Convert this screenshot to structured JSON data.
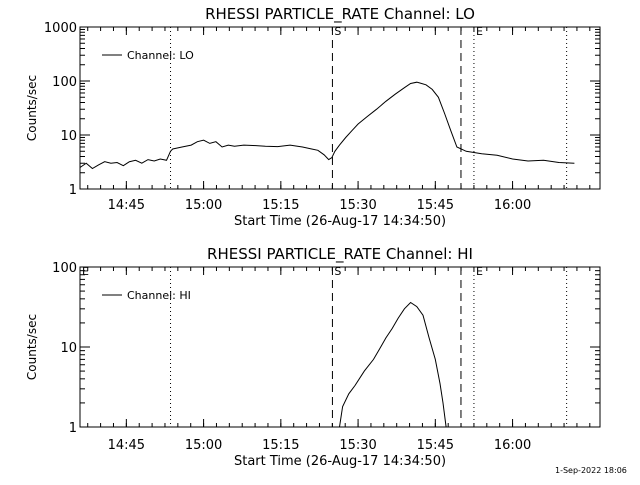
{
  "footer": {
    "timestamp": "1-Sep-2022 18:06"
  },
  "chart_data": [
    {
      "type": "line",
      "title": "RHESSI PARTICLE_RATE Channel: LO",
      "xlabel": "Start Time (26-Aug-17 14:34:50)",
      "ylabel": "Counts/sec",
      "yscale": "log",
      "xlim": [
        14.6,
        16.283
      ],
      "ylim": [
        1,
        1000
      ],
      "x_ticks": [
        14.75,
        15.0,
        15.25,
        15.5,
        15.75,
        16.0
      ],
      "x_tick_labels": [
        "14:45",
        "15:00",
        "15:15",
        "15:30",
        "15:45",
        "16:00"
      ],
      "y_ticks": [
        1,
        10,
        100,
        1000
      ],
      "y_tick_labels": [
        "1",
        "10",
        "100",
        "1000"
      ],
      "legend": {
        "entries": [
          "Channel: LO"
        ],
        "position": "top-left"
      },
      "markers": [
        {
          "x": 14.893,
          "style": "dotted",
          "label": ""
        },
        {
          "x": 15.417,
          "style": "dashed",
          "label": "S"
        },
        {
          "x": 15.833,
          "style": "dashed",
          "label": ""
        },
        {
          "x": 15.875,
          "style": "dotted",
          "label": "E"
        },
        {
          "x": 16.175,
          "style": "dotted",
          "label": ""
        }
      ],
      "series": [
        {
          "name": "Channel: LO",
          "x": [
            14.6,
            14.62,
            14.64,
            14.66,
            14.68,
            14.7,
            14.72,
            14.74,
            14.76,
            14.78,
            14.8,
            14.82,
            14.84,
            14.86,
            14.88,
            14.893,
            14.9,
            14.93,
            14.96,
            14.98,
            15.0,
            15.02,
            15.04,
            15.06,
            15.08,
            15.1,
            15.13,
            15.16,
            15.2,
            15.24,
            15.28,
            15.32,
            15.35,
            15.37,
            15.39,
            15.405,
            15.415,
            15.425,
            15.44,
            15.46,
            15.48,
            15.5,
            15.53,
            15.56,
            15.59,
            15.62,
            15.65,
            15.67,
            15.69,
            15.7,
            15.72,
            15.74,
            15.76,
            15.78,
            15.8,
            15.82,
            15.85,
            15.9,
            15.95,
            16.0,
            16.05,
            16.1,
            16.15,
            16.2
          ],
          "values": [
            2.5,
            3.0,
            2.4,
            2.8,
            3.2,
            3.0,
            3.1,
            2.7,
            3.2,
            3.4,
            3.0,
            3.5,
            3.3,
            3.6,
            3.4,
            5.0,
            5.5,
            6.0,
            6.5,
            7.5,
            8.0,
            7.0,
            7.5,
            6.0,
            6.5,
            6.2,
            6.5,
            6.4,
            6.2,
            6.1,
            6.5,
            6.0,
            5.5,
            5.2,
            4.3,
            3.5,
            3.8,
            5.0,
            6.5,
            9.0,
            12.0,
            16.0,
            22.0,
            30.0,
            42.0,
            57.0,
            75.0,
            90.0,
            95.0,
            92.0,
            85.0,
            70.0,
            50.0,
            25.0,
            12.0,
            6.0,
            5.0,
            4.5,
            4.2,
            3.6,
            3.3,
            3.4,
            3.1,
            3.0
          ]
        }
      ]
    },
    {
      "type": "line",
      "title": "RHESSI PARTICLE_RATE Channel: HI",
      "xlabel": "Start Time (26-Aug-17 14:34:50)",
      "ylabel": "Counts/sec",
      "yscale": "log",
      "xlim": [
        14.6,
        16.283
      ],
      "ylim": [
        1,
        100
      ],
      "x_ticks": [
        14.75,
        15.0,
        15.25,
        15.5,
        15.75,
        16.0
      ],
      "x_tick_labels": [
        "14:45",
        "15:00",
        "15:15",
        "15:30",
        "15:45",
        "16:00"
      ],
      "y_ticks": [
        1,
        10,
        100
      ],
      "y_tick_labels": [
        "1",
        "10",
        "100"
      ],
      "legend": {
        "entries": [
          "Channel: HI"
        ],
        "position": "top-left"
      },
      "markers": [
        {
          "x": 14.6,
          "style": "none",
          "label": "E"
        },
        {
          "x": 14.893,
          "style": "dotted",
          "label": ""
        },
        {
          "x": 15.417,
          "style": "dashed",
          "label": "S"
        },
        {
          "x": 15.833,
          "style": "dashed",
          "label": ""
        },
        {
          "x": 15.875,
          "style": "dotted",
          "label": "E"
        },
        {
          "x": 16.175,
          "style": "dotted",
          "label": ""
        }
      ],
      "series": [
        {
          "name": "Channel: HI",
          "x": [
            15.44,
            15.45,
            15.47,
            15.49,
            15.52,
            15.55,
            15.57,
            15.59,
            15.61,
            15.63,
            15.65,
            15.67,
            15.69,
            15.71,
            15.73,
            15.75,
            15.765,
            15.775,
            15.785
          ],
          "values": [
            1.0,
            1.8,
            2.6,
            3.3,
            5.0,
            7.0,
            9.5,
            13.0,
            17.0,
            23.0,
            30.0,
            36.0,
            32.0,
            25.0,
            13.0,
            7.0,
            3.5,
            2.0,
            1.0
          ]
        }
      ]
    }
  ]
}
